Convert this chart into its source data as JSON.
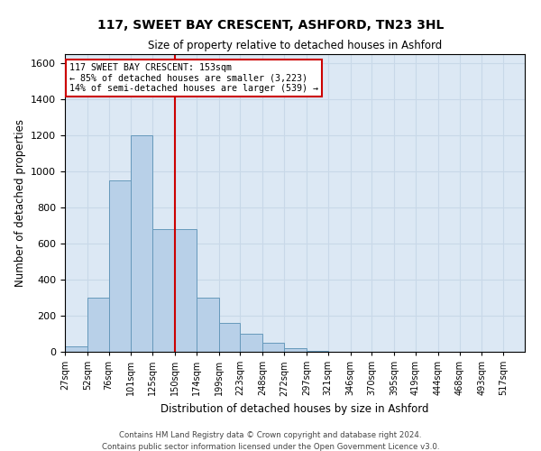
{
  "title1": "117, SWEET BAY CRESCENT, ASHFORD, TN23 3HL",
  "title2": "Size of property relative to detached houses in Ashford",
  "xlabel": "Distribution of detached houses by size in Ashford",
  "ylabel": "Number of detached properties",
  "footer1": "Contains HM Land Registry data © Crown copyright and database right 2024.",
  "footer2": "Contains public sector information licensed under the Open Government Licence v3.0.",
  "annotation_line1": "117 SWEET BAY CRESCENT: 153sqm",
  "annotation_line2": "← 85% of detached houses are smaller (3,223)",
  "annotation_line3": "14% of semi-detached houses are larger (539) →",
  "bar_color": "#b8d0e8",
  "bar_edge_color": "#6699bb",
  "grid_color": "#c8d8e8",
  "bg_color": "#dce8f4",
  "vline_color": "#cc0000",
  "annotation_box_color": "#cc0000",
  "bin_labels": [
    "27sqm",
    "52sqm",
    "76sqm",
    "101sqm",
    "125sqm",
    "150sqm",
    "174sqm",
    "199sqm",
    "223sqm",
    "248sqm",
    "272sqm",
    "297sqm",
    "321sqm",
    "346sqm",
    "370sqm",
    "395sqm",
    "419sqm",
    "444sqm",
    "468sqm",
    "493sqm",
    "517sqm"
  ],
  "bin_edges": [
    27,
    52,
    76,
    101,
    125,
    150,
    174,
    199,
    223,
    248,
    272,
    297,
    321,
    346,
    370,
    395,
    419,
    444,
    468,
    493,
    517,
    541
  ],
  "bar_heights": [
    30,
    300,
    950,
    1200,
    680,
    680,
    300,
    160,
    100,
    50,
    20,
    5,
    2,
    1,
    0,
    0,
    1,
    0,
    0,
    0,
    2
  ],
  "vline_x": 150,
  "ylim": [
    0,
    1650
  ],
  "yticks": [
    0,
    200,
    400,
    600,
    800,
    1000,
    1200,
    1400,
    1600
  ]
}
